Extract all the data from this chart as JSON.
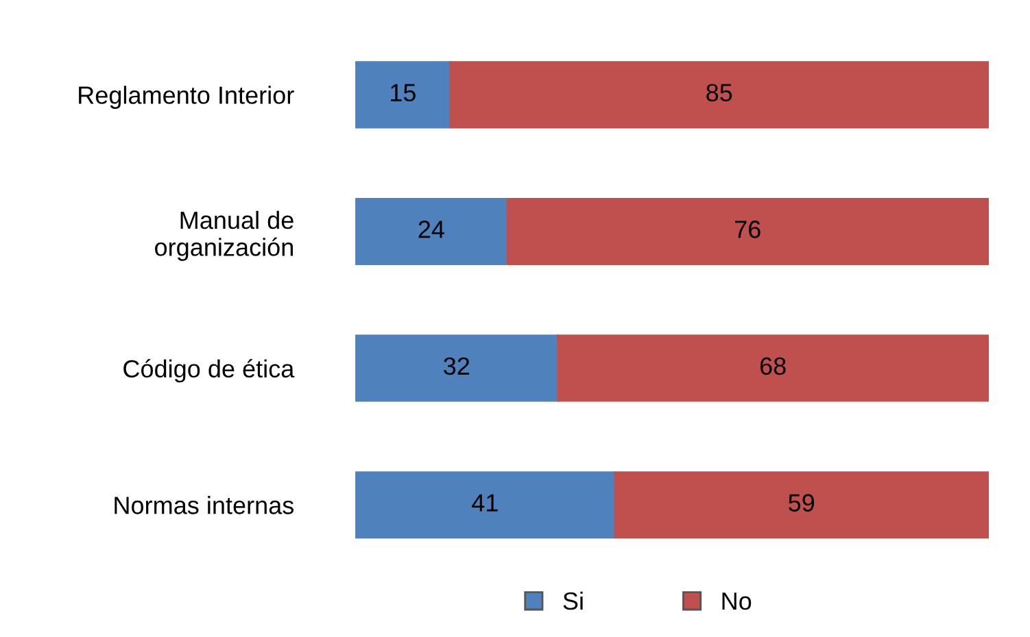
{
  "chart_data": {
    "type": "bar",
    "orientation": "horizontal",
    "stacked": true,
    "data_labels": true,
    "legend": "bottom",
    "grid": false,
    "categories": [
      "Reglamento Interior",
      "Manual de\norganización",
      "Código de ética",
      "Normas internas"
    ],
    "series": [
      {
        "name": "Si",
        "color": "#4f81bd",
        "values": [
          15,
          24,
          32,
          41
        ]
      },
      {
        "name": "No",
        "color": "#c0504d",
        "values": [
          85,
          76,
          68,
          59
        ]
      }
    ]
  }
}
